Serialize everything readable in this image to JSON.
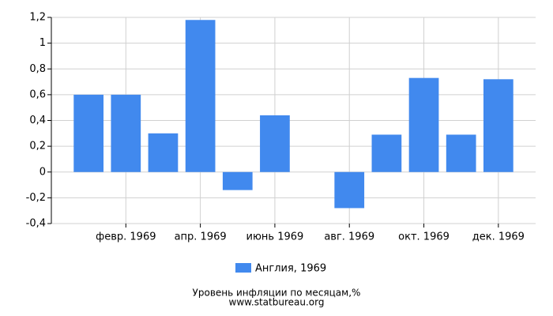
{
  "chart_data": {
    "type": "bar",
    "title": "Уровень инфляции по месяцам,%",
    "source": "www.statbureau.org",
    "categories": [
      null,
      "февр. 1969",
      null,
      "апр. 1969",
      null,
      "июнь 1969",
      null,
      "авг. 1969",
      null,
      "окт. 1969",
      null,
      "дек. 1969"
    ],
    "series": [
      {
        "name": "Англия, 1969",
        "color": "#4189ee",
        "values": [
          0.6,
          0.6,
          0.3,
          1.18,
          -0.14,
          0.44,
          0,
          -0.28,
          0.29,
          0.73,
          0.29,
          0.72
        ]
      }
    ],
    "ylim": [
      -0.4,
      1.2
    ],
    "yticks": [
      {
        "value": -0.4,
        "label": "-0,4"
      },
      {
        "value": -0.2,
        "label": "-0,2"
      },
      0,
      {
        "value": 0.2,
        "label": "0,2"
      },
      {
        "value": 0.4,
        "label": "0,4"
      },
      {
        "value": 0.6,
        "label": "0,6"
      },
      {
        "value": 0.8,
        "label": "0,8"
      },
      1,
      {
        "value": 1.2,
        "label": "1,2"
      }
    ],
    "grid": true
  }
}
